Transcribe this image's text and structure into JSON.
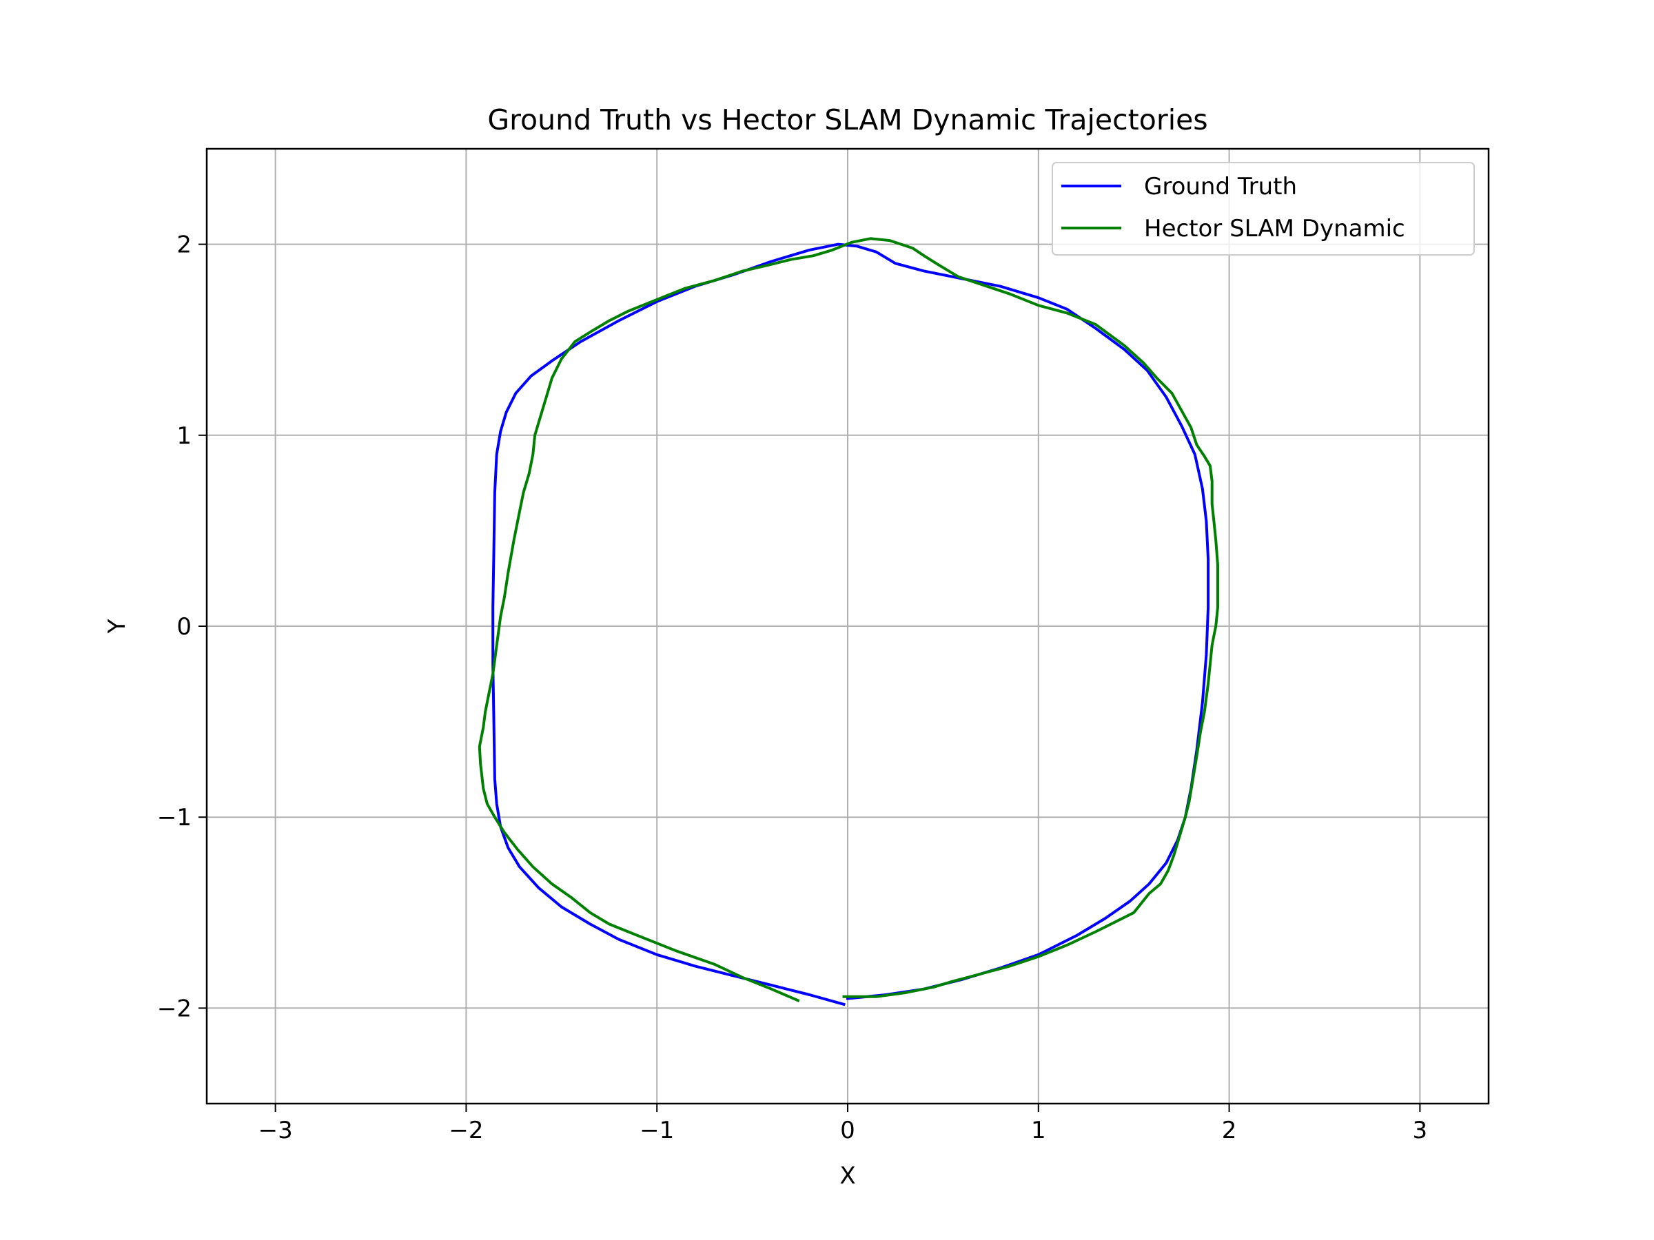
{
  "chart_data": {
    "type": "line",
    "title": "Ground Truth vs Hector SLAM Dynamic Trajectories",
    "xlabel": "X",
    "ylabel": "Y",
    "xlim": [
      -3.36,
      3.36
    ],
    "ylim": [
      -2.5,
      2.5
    ],
    "xticks": [
      -3,
      -2,
      -1,
      0,
      1,
      2,
      3
    ],
    "yticks": [
      -2,
      -1,
      0,
      1,
      2
    ],
    "xtick_labels": [
      "−3",
      "−2",
      "−1",
      "0",
      "1",
      "2",
      "3"
    ],
    "ytick_labels": [
      "−2",
      "−1",
      "0",
      "1",
      "2"
    ],
    "grid": true,
    "legend_position": "top-right",
    "series": [
      {
        "name": "Ground Truth",
        "color": "#0000ff",
        "points": [
          [
            -0.02,
            -1.98
          ],
          [
            -0.2,
            -1.93
          ],
          [
            -0.4,
            -1.88
          ],
          [
            -0.6,
            -1.83
          ],
          [
            -0.8,
            -1.78
          ],
          [
            -1.0,
            -1.72
          ],
          [
            -1.2,
            -1.64
          ],
          [
            -1.35,
            -1.56
          ],
          [
            -1.5,
            -1.47
          ],
          [
            -1.62,
            -1.37
          ],
          [
            -1.72,
            -1.26
          ],
          [
            -1.78,
            -1.16
          ],
          [
            -1.82,
            -1.05
          ],
          [
            -1.84,
            -0.93
          ],
          [
            -1.85,
            -0.8
          ],
          [
            -1.855,
            -0.5
          ],
          [
            -1.86,
            -0.2
          ],
          [
            -1.86,
            0.1
          ],
          [
            -1.855,
            0.4
          ],
          [
            -1.85,
            0.7
          ],
          [
            -1.84,
            0.9
          ],
          [
            -1.82,
            1.02
          ],
          [
            -1.79,
            1.12
          ],
          [
            -1.74,
            1.22
          ],
          [
            -1.66,
            1.31
          ],
          [
            -1.55,
            1.39
          ],
          [
            -1.4,
            1.49
          ],
          [
            -1.2,
            1.6
          ],
          [
            -1.0,
            1.7
          ],
          [
            -0.8,
            1.78
          ],
          [
            -0.6,
            1.84
          ],
          [
            -0.4,
            1.91
          ],
          [
            -0.2,
            1.97
          ],
          [
            -0.05,
            2.0
          ],
          [
            0.05,
            1.99
          ],
          [
            0.15,
            1.96
          ],
          [
            0.25,
            1.9
          ],
          [
            0.4,
            1.86
          ],
          [
            0.6,
            1.82
          ],
          [
            0.8,
            1.78
          ],
          [
            1.0,
            1.72
          ],
          [
            1.15,
            1.66
          ],
          [
            1.3,
            1.56
          ],
          [
            1.45,
            1.45
          ],
          [
            1.57,
            1.34
          ],
          [
            1.67,
            1.2
          ],
          [
            1.75,
            1.05
          ],
          [
            1.82,
            0.9
          ],
          [
            1.86,
            0.72
          ],
          [
            1.88,
            0.55
          ],
          [
            1.89,
            0.35
          ],
          [
            1.89,
            0.1
          ],
          [
            1.88,
            -0.15
          ],
          [
            1.86,
            -0.4
          ],
          [
            1.83,
            -0.65
          ],
          [
            1.8,
            -0.85
          ],
          [
            1.77,
            -1.0
          ],
          [
            1.73,
            -1.12
          ],
          [
            1.67,
            -1.24
          ],
          [
            1.58,
            -1.35
          ],
          [
            1.48,
            -1.44
          ],
          [
            1.35,
            -1.53
          ],
          [
            1.2,
            -1.62
          ],
          [
            1.0,
            -1.72
          ],
          [
            0.8,
            -1.79
          ],
          [
            0.6,
            -1.85
          ],
          [
            0.4,
            -1.9
          ],
          [
            0.2,
            -1.93
          ],
          [
            0.0,
            -1.95
          ]
        ]
      },
      {
        "name": "Hector SLAM Dynamic",
        "color": "#008000",
        "points": [
          [
            -0.26,
            -1.96
          ],
          [
            -0.4,
            -1.9
          ],
          [
            -0.55,
            -1.84
          ],
          [
            -0.7,
            -1.77
          ],
          [
            -0.9,
            -1.7
          ],
          [
            -1.1,
            -1.62
          ],
          [
            -1.25,
            -1.56
          ],
          [
            -1.35,
            -1.5
          ],
          [
            -1.45,
            -1.42
          ],
          [
            -1.55,
            -1.35
          ],
          [
            -1.65,
            -1.26
          ],
          [
            -1.73,
            -1.17
          ],
          [
            -1.8,
            -1.08
          ],
          [
            -1.85,
            -1.0
          ],
          [
            -1.89,
            -0.93
          ],
          [
            -1.91,
            -0.85
          ],
          [
            -1.925,
            -0.72
          ],
          [
            -1.93,
            -0.63
          ],
          [
            -1.91,
            -0.53
          ],
          [
            -1.9,
            -0.45
          ],
          [
            -1.88,
            -0.35
          ],
          [
            -1.86,
            -0.25
          ],
          [
            -1.84,
            -0.1
          ],
          [
            -1.82,
            0.05
          ],
          [
            -1.8,
            0.15
          ],
          [
            -1.78,
            0.28
          ],
          [
            -1.75,
            0.45
          ],
          [
            -1.72,
            0.6
          ],
          [
            -1.7,
            0.7
          ],
          [
            -1.67,
            0.8
          ],
          [
            -1.65,
            0.9
          ],
          [
            -1.64,
            1.0
          ],
          [
            -1.61,
            1.1
          ],
          [
            -1.58,
            1.2
          ],
          [
            -1.55,
            1.3
          ],
          [
            -1.5,
            1.4
          ],
          [
            -1.43,
            1.49
          ],
          [
            -1.35,
            1.54
          ],
          [
            -1.25,
            1.6
          ],
          [
            -1.15,
            1.65
          ],
          [
            -1.05,
            1.69
          ],
          [
            -0.95,
            1.73
          ],
          [
            -0.85,
            1.77
          ],
          [
            -0.7,
            1.81
          ],
          [
            -0.55,
            1.86
          ],
          [
            -0.42,
            1.89
          ],
          [
            -0.3,
            1.92
          ],
          [
            -0.18,
            1.94
          ],
          [
            -0.08,
            1.97
          ],
          [
            0.02,
            2.01
          ],
          [
            0.12,
            2.03
          ],
          [
            0.22,
            2.02
          ],
          [
            0.34,
            1.98
          ],
          [
            0.4,
            1.94
          ],
          [
            0.48,
            1.89
          ],
          [
            0.58,
            1.83
          ],
          [
            0.7,
            1.79
          ],
          [
            0.85,
            1.74
          ],
          [
            1.0,
            1.68
          ],
          [
            1.15,
            1.64
          ],
          [
            1.3,
            1.58
          ],
          [
            1.45,
            1.47
          ],
          [
            1.55,
            1.38
          ],
          [
            1.62,
            1.3
          ],
          [
            1.7,
            1.22
          ],
          [
            1.75,
            1.13
          ],
          [
            1.8,
            1.04
          ],
          [
            1.83,
            0.95
          ],
          [
            1.87,
            0.89
          ],
          [
            1.9,
            0.84
          ],
          [
            1.91,
            0.76
          ],
          [
            1.91,
            0.64
          ],
          [
            1.92,
            0.55
          ],
          [
            1.93,
            0.45
          ],
          [
            1.94,
            0.32
          ],
          [
            1.94,
            0.2
          ],
          [
            1.94,
            0.1
          ],
          [
            1.93,
            0.0
          ],
          [
            1.92,
            -0.05
          ],
          [
            1.91,
            -0.1
          ],
          [
            1.9,
            -0.2
          ],
          [
            1.89,
            -0.3
          ],
          [
            1.87,
            -0.45
          ],
          [
            1.85,
            -0.55
          ],
          [
            1.83,
            -0.68
          ],
          [
            1.81,
            -0.8
          ],
          [
            1.79,
            -0.92
          ],
          [
            1.77,
            -1.0
          ],
          [
            1.74,
            -1.1
          ],
          [
            1.71,
            -1.2
          ],
          [
            1.68,
            -1.28
          ],
          [
            1.64,
            -1.35
          ],
          [
            1.58,
            -1.4
          ],
          [
            1.5,
            -1.5
          ],
          [
            1.4,
            -1.55
          ],
          [
            1.3,
            -1.6
          ],
          [
            1.15,
            -1.67
          ],
          [
            1.0,
            -1.73
          ],
          [
            0.85,
            -1.78
          ],
          [
            0.7,
            -1.82
          ],
          [
            0.55,
            -1.86
          ],
          [
            0.45,
            -1.89
          ],
          [
            0.3,
            -1.92
          ],
          [
            0.15,
            -1.94
          ],
          [
            0.0,
            -1.94
          ],
          [
            -0.02,
            -1.94
          ]
        ]
      }
    ]
  }
}
